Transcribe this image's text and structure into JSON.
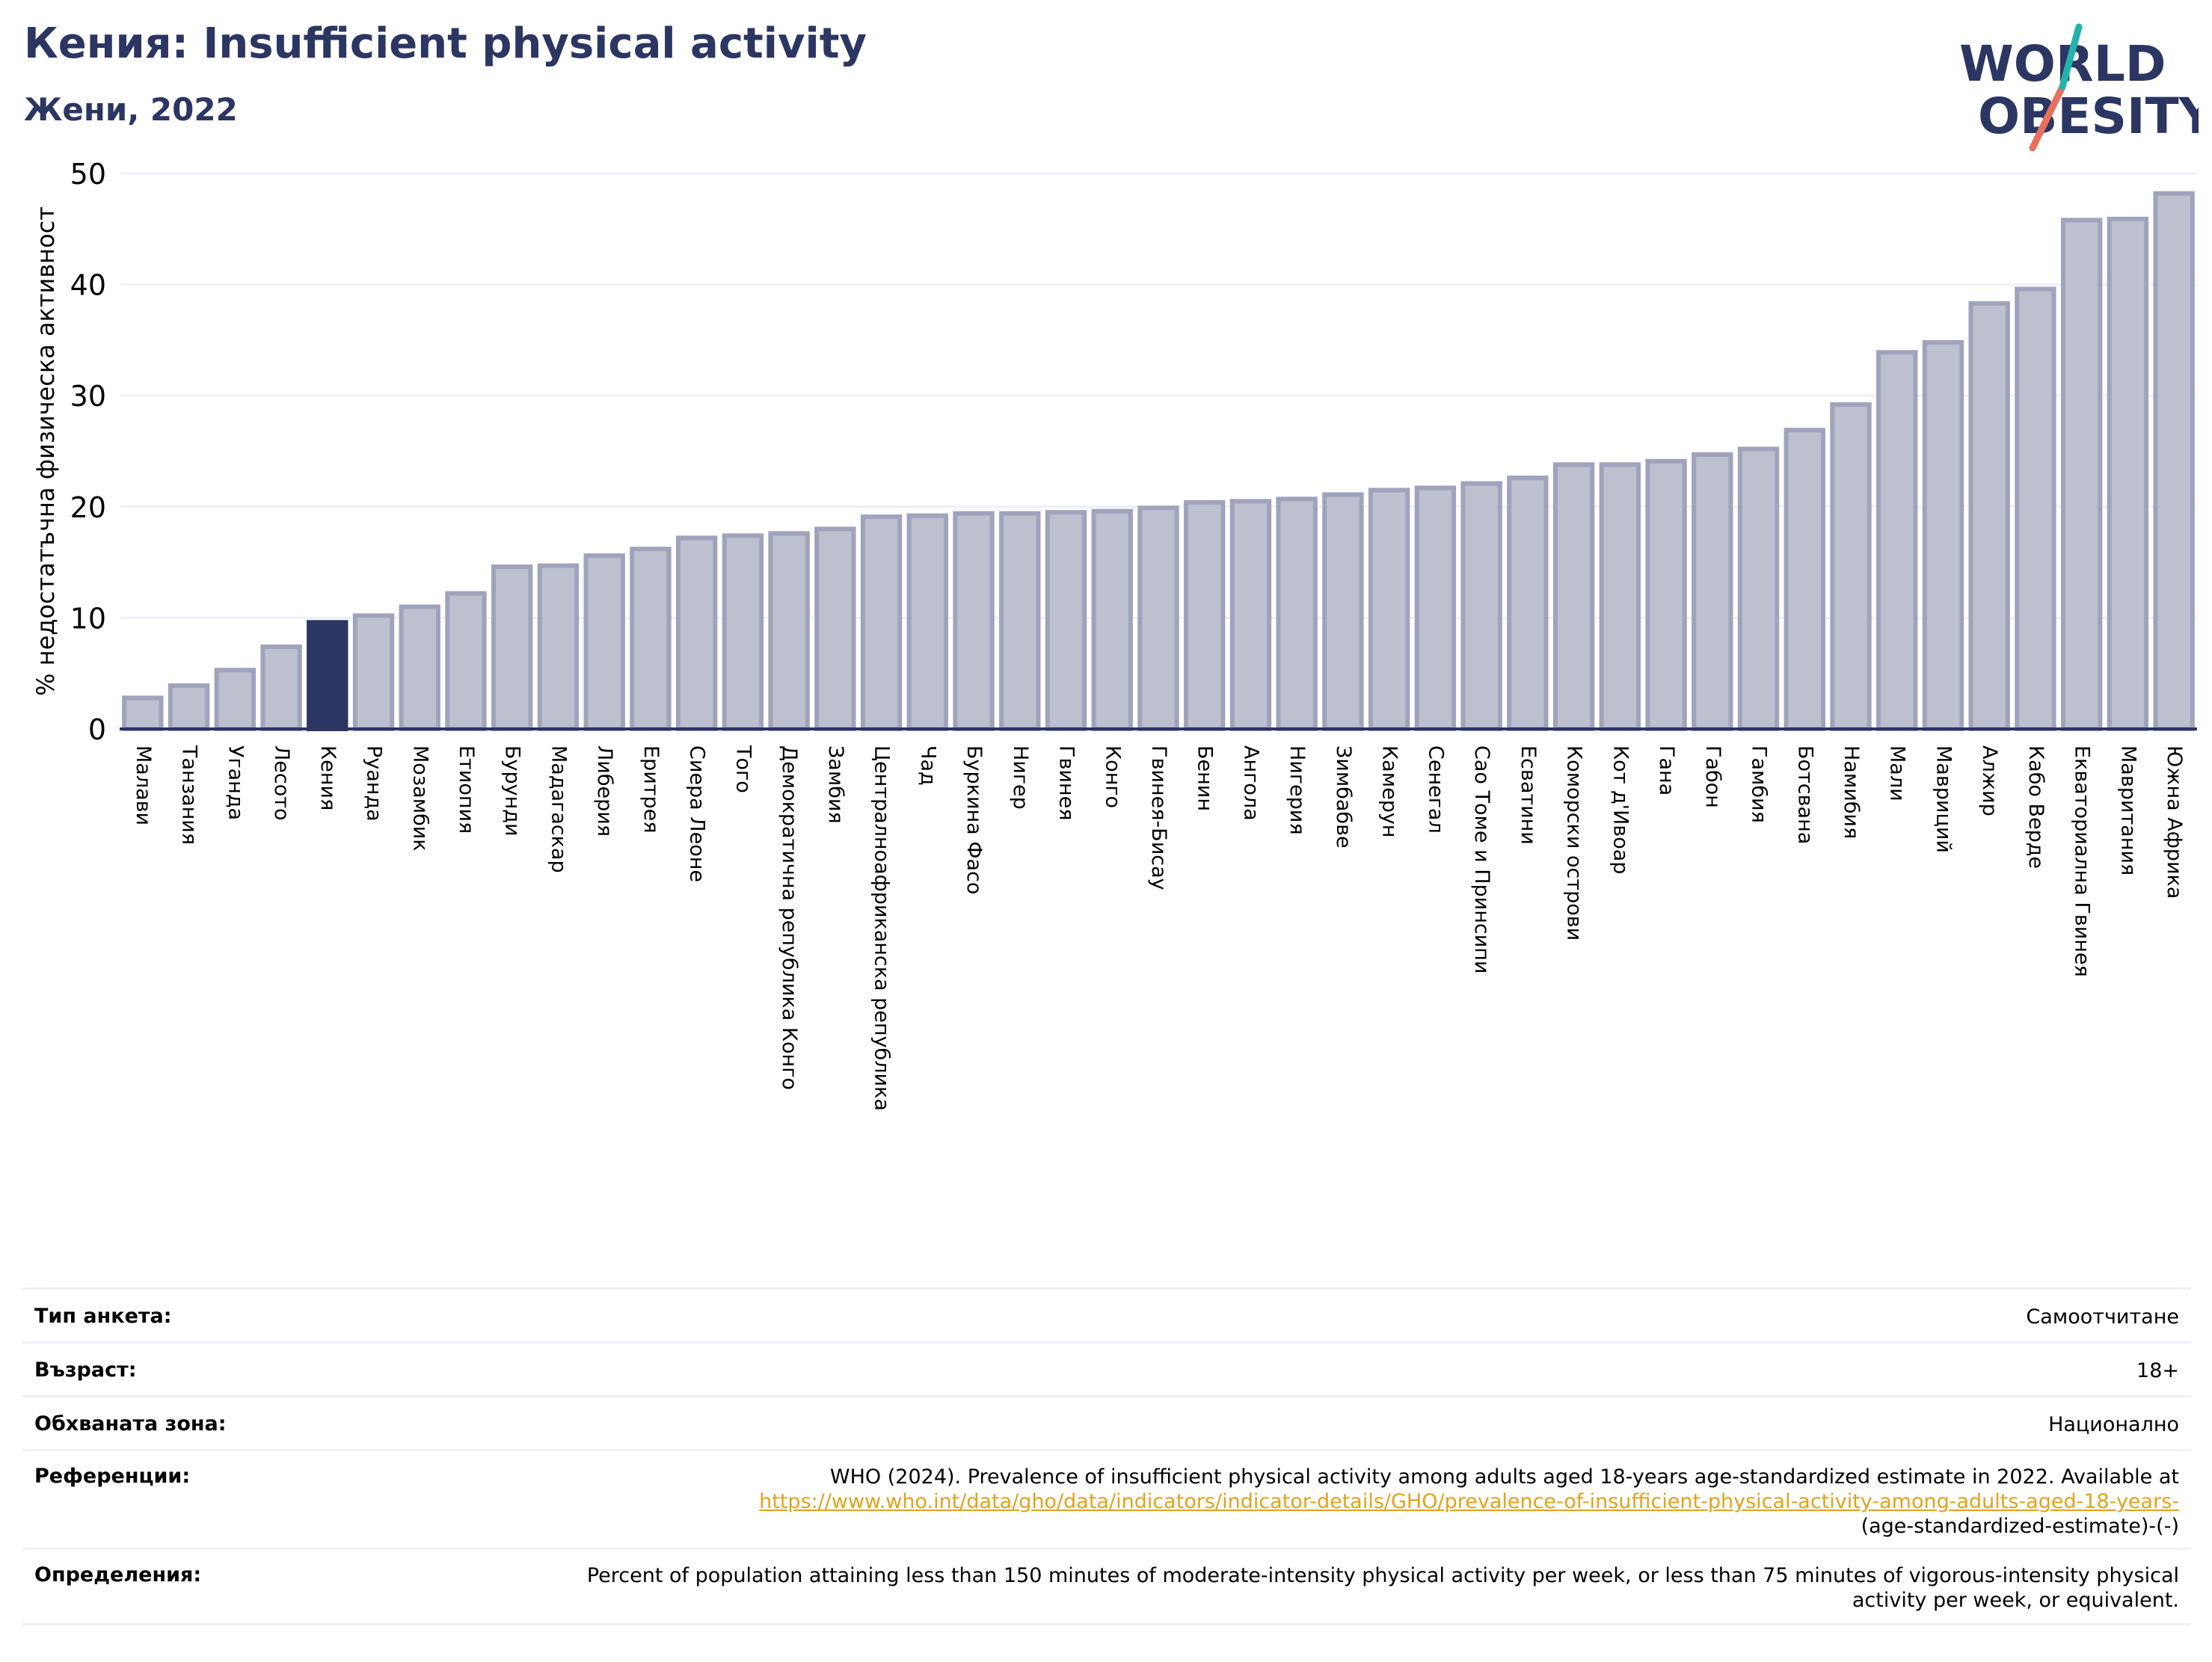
{
  "header": {
    "title": "Кения: Insufficient physical activity",
    "subtitle": "Жени, 2022"
  },
  "logo": {
    "line1": "WORLD",
    "line2": "OBESITY",
    "colors": {
      "navy": "#2b3663",
      "teal": "#22b3b0",
      "coral": "#e8705d"
    }
  },
  "colors": {
    "bar": "#bdc0cf",
    "bar_edge": "#9fa3bb",
    "highlight": "#2b3663",
    "axis": "#2b3663",
    "grid": "#eef0fb"
  },
  "chart_data": {
    "type": "bar",
    "ylabel": "% недостатъчна физическа активност",
    "ylim": [
      0,
      50
    ],
    "yticks": [
      0,
      10,
      20,
      30,
      40,
      50
    ],
    "highlight": "Кения",
    "categories": [
      "Малави",
      "Танзания",
      "Уганда",
      "Лесото",
      "Кения",
      "Руанда",
      "Мозамбик",
      "Етиопия",
      "Бурунди",
      "Мадагаскар",
      "Либерия",
      "Еритрея",
      "Сиера Леоне",
      "Того",
      "Демократична република Конго",
      "Замбия",
      "Централноафриканска република",
      "Чад",
      "Буркина Фасо",
      "Нигер",
      "Гвинея",
      "Конго",
      "Гвинея-Бисау",
      "Бенин",
      "Ангола",
      "Нигерия",
      "Зимбабве",
      "Камерун",
      "Сенегал",
      "Сао Томе и Принсипи",
      "Есватини",
      "Коморски острови",
      "Кот д'Ивоар",
      "Гана",
      "Габон",
      "Гамбия",
      "Ботсвана",
      "Намибия",
      "Мали",
      "Мавриций",
      "Алжир",
      "Кабо Верде",
      "Екваториална Гвинея",
      "Мавритания",
      "Южна Африка"
    ],
    "values": [
      2.8,
      3.9,
      5.3,
      7.4,
      9.6,
      10.2,
      11.0,
      12.2,
      14.6,
      14.7,
      15.6,
      16.2,
      17.2,
      17.4,
      17.6,
      18.0,
      19.1,
      19.2,
      19.4,
      19.4,
      19.5,
      19.6,
      19.9,
      20.4,
      20.5,
      20.7,
      21.1,
      21.5,
      21.7,
      22.1,
      22.6,
      23.8,
      23.8,
      24.1,
      24.7,
      25.2,
      26.9,
      29.2,
      33.9,
      34.8,
      38.3,
      39.6,
      45.8,
      45.9,
      48.2
    ]
  },
  "info": {
    "survey_label": "Тип анкета:",
    "survey_value": "Самоотчитане",
    "age_label": "Възраст:",
    "age_value": "18+",
    "area_label": "Обхваната зона:",
    "area_value": "Национално",
    "ref_label": "Референции:",
    "ref_text": "WHO (2024). Prevalence of insufficient physical activity among adults aged 18-years age-standardized estimate in 2022. Available at",
    "ref_link": "https://www.who.int/data/gho/data/indicators/indicator-details/GHO/prevalence-of-insufficient-physical-activity-among-adults-aged-18-years-",
    "ref_tail": "(age-standardized-estimate)-(-)",
    "def_label": "Определения:",
    "def_value": "Percent of population attaining less than 150 minutes of moderate-intensity physical activity per week, or less than 75 minutes of vigorous-intensity physical activity per week, or equivalent."
  }
}
